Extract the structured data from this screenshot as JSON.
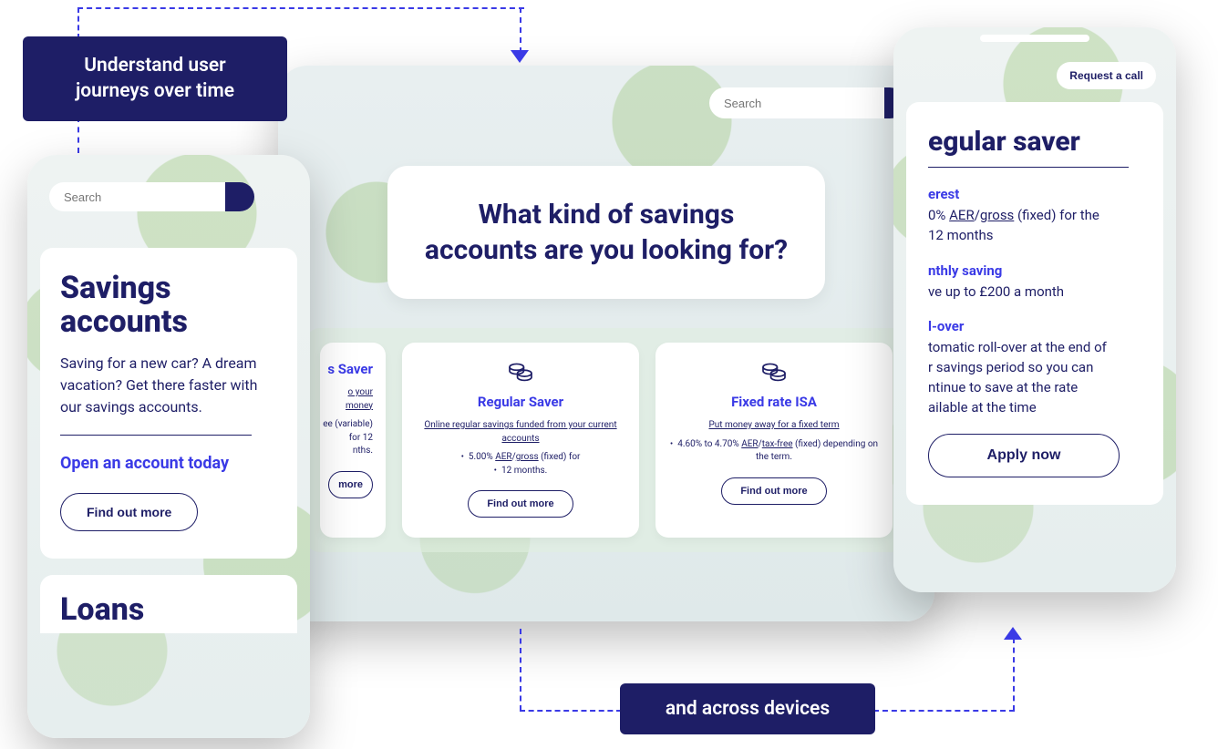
{
  "colors": {
    "navy": "#1e1e66",
    "link_blue": "#3a3ae6",
    "card_bg": "#ffffff",
    "device_bg": "#e6edee",
    "leaf_green": "#8fbf6a"
  },
  "connectors": {
    "style": "dashed",
    "color": "#3a3ae6",
    "arrowheads": [
      "down",
      "up"
    ]
  },
  "annotations": {
    "top": "Understand user journeys over time",
    "bottom": "and across devices"
  },
  "desktop": {
    "search_placeholder": "Search",
    "headline": "What kind of savings accounts are you looking for?",
    "products": [
      {
        "title_suffix": "s Saver",
        "desc_suffix": "o your money",
        "bullets_html": "ee (variable) for 12<br>nths.",
        "cta_suffix": "more"
      },
      {
        "title": "Regular Saver",
        "desc": "Online regular savings funded from your current accounts",
        "bullets_html": "• &nbsp;5.00% <u>AER</u>/<u>gross</u> (fixed) for<br>• &nbsp;12 months.",
        "cta": "Find out more"
      },
      {
        "title": "Fixed rate ISA",
        "desc": "Put money away for a fixed term",
        "bullets_html": "• &nbsp;4.60% to 4.70% <u>AER</u>/<u>tax-free</u> (fixed) depending on the term.",
        "cta": "Find out more"
      }
    ]
  },
  "mobile_left": {
    "search_placeholder": "Search",
    "title": "Savings accounts",
    "intro": "Saving for a new car? A dream vacation? Get there faster with our savings accounts.",
    "cta_link": "Open an account today",
    "button": "Find out more",
    "next_section_title": "Loans"
  },
  "mobile_right": {
    "request_call": "Request a call",
    "title_visible": "egular saver",
    "sections": [
      {
        "label_visible": "erest",
        "body_html": "0% <u>AER</u>/<u>gross</u> (fixed) for the<br>12 months"
      },
      {
        "label_visible": "nthly saving",
        "body_html": "ve up to £200 a month"
      },
      {
        "label_visible": "l-over",
        "body_html": "tomatic roll-over at the end of<br>r savings period so you can<br>ntinue to save at the rate<br>ailable at the time"
      }
    ],
    "apply_button": "Apply now"
  }
}
